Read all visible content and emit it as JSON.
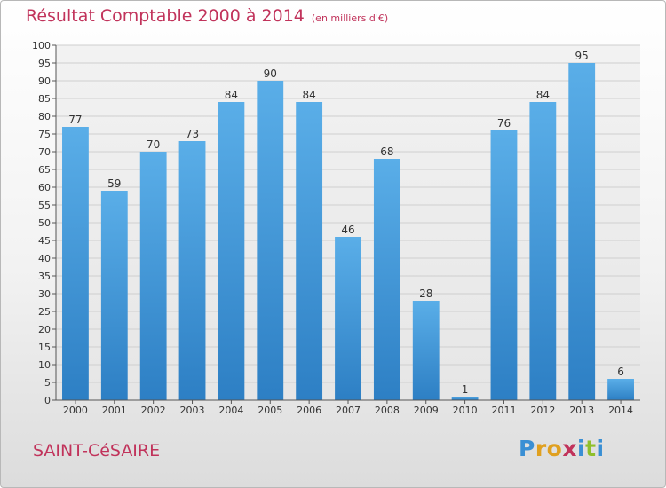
{
  "header": {
    "title": "Résultat Comptable 2000 à 2014",
    "subtitle": "(en milliers d'€)"
  },
  "footer": {
    "place": "SAINT-CéSAIRE",
    "logo_letters": [
      "P",
      "r",
      "o",
      "x",
      "i",
      "t",
      "i"
    ],
    "logo_colors": [
      "#3a8fd4",
      "#e0a020",
      "#e0a020",
      "#c1335b",
      "#3a8fd4",
      "#8fbf2a",
      "#3a8fd4"
    ]
  },
  "chart_data": {
    "type": "bar",
    "title": "Résultat Comptable 2000 à 2014",
    "subtitle": "(en milliers d'€)",
    "categories": [
      "2000",
      "2001",
      "2002",
      "2003",
      "2004",
      "2005",
      "2006",
      "2007",
      "2008",
      "2009",
      "2010",
      "2011",
      "2012",
      "2013",
      "2014"
    ],
    "values": [
      77,
      59,
      70,
      73,
      84,
      90,
      84,
      46,
      68,
      28,
      1,
      76,
      84,
      95,
      6
    ],
    "ylim": [
      0,
      100
    ],
    "yticks": [
      0,
      5,
      10,
      15,
      20,
      25,
      30,
      35,
      40,
      45,
      50,
      55,
      60,
      65,
      70,
      75,
      80,
      85,
      90,
      95,
      100
    ],
    "grid": true,
    "bar_color_top": "#5aaee8",
    "bar_color_bottom": "#2d7fc4"
  }
}
